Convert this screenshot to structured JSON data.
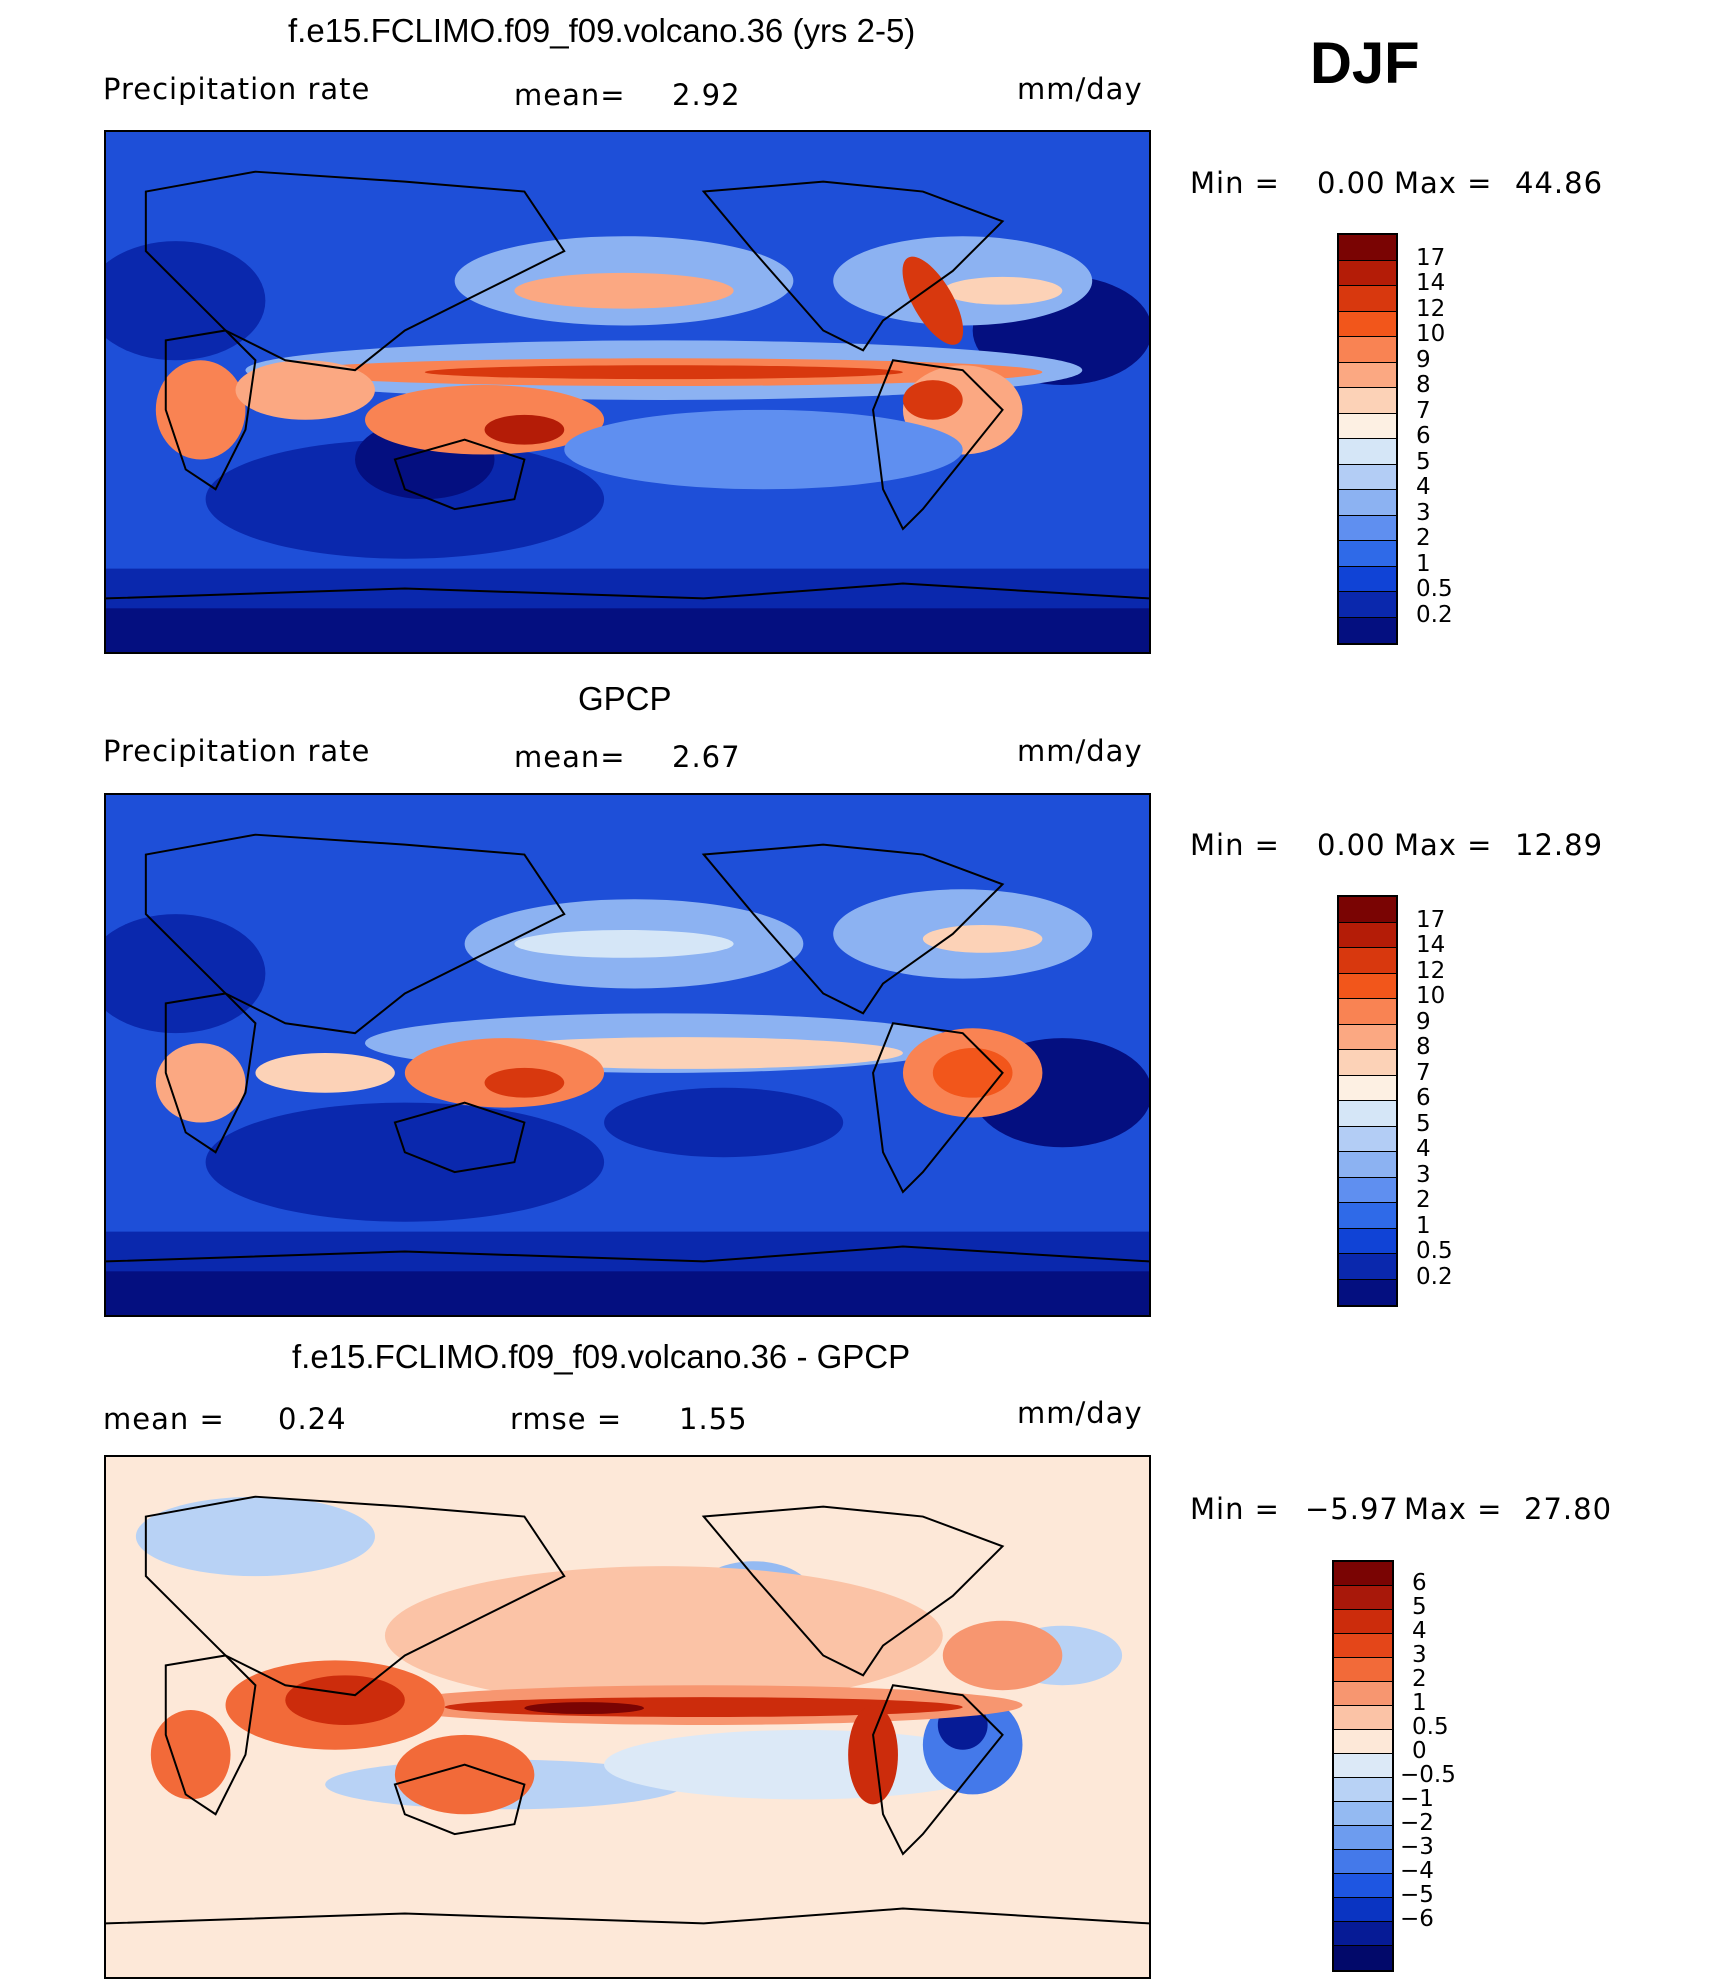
{
  "season": "DJF",
  "panels": [
    {
      "title": "f.e15.FCLIMO.f09_f09.volcano.36 (yrs 2-5)",
      "left_label": "Precipitation  rate",
      "stat_label": "mean=",
      "stat_value": "2.92",
      "units": "mm/day",
      "min_label": "Min  =",
      "min_value": "0.00",
      "max_label": "Max  =",
      "max_value": "44.86",
      "colorbar_labels": [
        "17",
        "14",
        "12",
        "10",
        "9",
        "8",
        "7",
        "6",
        "5",
        "4",
        "3",
        "2",
        "1",
        "0.5",
        "0.2"
      ]
    },
    {
      "title": "GPCP",
      "left_label": "Precipitation  rate",
      "stat_label": "mean=",
      "stat_value": "2.67",
      "units": "mm/day",
      "min_label": "Min  =",
      "min_value": "0.00",
      "max_label": "Max  =",
      "max_value": "12.89",
      "colorbar_labels": [
        "17",
        "14",
        "12",
        "10",
        "9",
        "8",
        "7",
        "6",
        "5",
        "4",
        "3",
        "2",
        "1",
        "0.5",
        "0.2"
      ]
    },
    {
      "title": "f.e15.FCLIMO.f09_f09.volcano.36 - GPCP",
      "left_label": "mean  =",
      "left_value": "0.24",
      "stat_label": "rmse  =",
      "stat_value": "1.55",
      "units": "mm/day",
      "min_label": "Min  =",
      "min_value": "−5.97",
      "max_label": "Max  =",
      "max_value": "27.80",
      "colorbar_labels": [
        "6",
        "5",
        "4",
        "3",
        "2",
        "1",
        "0.5",
        "0",
        "−0.5",
        "−1",
        "−2",
        "−3",
        "−4",
        "−5",
        "−6"
      ]
    }
  ],
  "colors": {
    "precip_scale": [
      "#7a0403",
      "#b41c07",
      "#d8380e",
      "#f2561b",
      "#f98353",
      "#fba882",
      "#fcd2b7",
      "#fdf0e3",
      "#d5e6f7",
      "#b3cdf5",
      "#8cb2f2",
      "#5f8ff0",
      "#2f6ae8",
      "#1043d6",
      "#0a28ad",
      "#040f80"
    ],
    "diff_scale": [
      "#7a0403",
      "#a8180a",
      "#cc2c0c",
      "#e44619",
      "#f26a39",
      "#f79670",
      "#fbc3a6",
      "#fde8d8",
      "#dce9f7",
      "#b8d2f5",
      "#94baf2",
      "#6d9cef",
      "#4479ea",
      "#1e56e2",
      "#0a34c2",
      "#061b96",
      "#02096a"
    ],
    "map_base": "#1a45d0",
    "coastline": "#000000"
  }
}
